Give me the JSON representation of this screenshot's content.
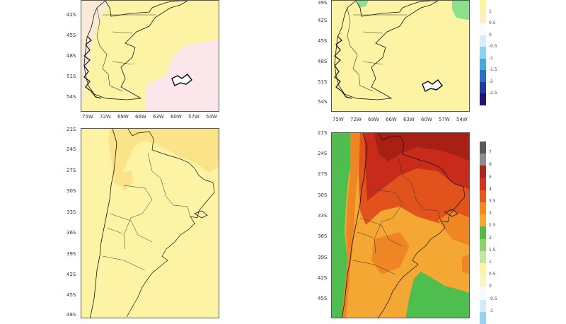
{
  "panels": [
    {
      "id": "top-left",
      "lat_labels": [
        "42S",
        "45S",
        "48S",
        "51S",
        "54S"
      ],
      "lon_labels": [
        "75W",
        "72W",
        "69W",
        "66W",
        "63W",
        "60W",
        "57W",
        "54W"
      ]
    },
    {
      "id": "top-right",
      "lat_labels": [
        "39S",
        "42S",
        "45S",
        "48S",
        "51S",
        "54S"
      ],
      "lon_labels": [
        "75W",
        "72W",
        "69W",
        "66W",
        "63W",
        "60W",
        "57W",
        "54W"
      ]
    },
    {
      "id": "bottom-left",
      "lat_labels": [
        "21S",
        "24S",
        "27S",
        "30S",
        "33S",
        "36S",
        "39S",
        "42S",
        "45S",
        "48S"
      ]
    },
    {
      "id": "bottom-right",
      "lat_labels": [
        "21S",
        "24S",
        "27S",
        "30S",
        "33S",
        "36S",
        "39S",
        "42S",
        "45S"
      ]
    }
  ],
  "colorbars": [
    {
      "id": "top-colorbar",
      "labels": [
        "1",
        "0.5",
        "0",
        "-0.5",
        "-1",
        "-1.5",
        "-2",
        "-2.5"
      ],
      "colors": [
        "#fdf3a6",
        "#fbf0c0",
        "#f7fbfd",
        "#d6eefb",
        "#8fd2f0",
        "#4aa9dc",
        "#2e6fc2",
        "#243b9c",
        "#1b1675"
      ]
    },
    {
      "id": "bottom-colorbar",
      "labels": [
        "7",
        "6",
        "5",
        "4",
        "3.5",
        "3",
        "2.5",
        "2",
        "1.5",
        "1",
        "0.5",
        "0",
        "-0.5",
        "-1"
      ],
      "colors": [
        "#5a5a5a",
        "#8c8c8c",
        "#a8281a",
        "#d0351f",
        "#e35a1e",
        "#ef8a1f",
        "#f4a934",
        "#58b848",
        "#8fd072",
        "#c2e8a6",
        "#fdf4a5",
        "#fbf4c8",
        "#f5fbfe",
        "#d3ecfa",
        "#97d3f1"
      ]
    }
  ],
  "fill_colors": {
    "pale_yellow": "#fcf4a4",
    "yellow": "#fbe38a",
    "pale_pink": "#fbe6ec",
    "light_green": "#8be08c",
    "green": "#4ebf4e",
    "orange": "#f4a733",
    "deep_orange": "#ee8723",
    "red_orange": "#e1521d",
    "red": "#c92b1a",
    "dark_red": "#a81f13"
  }
}
